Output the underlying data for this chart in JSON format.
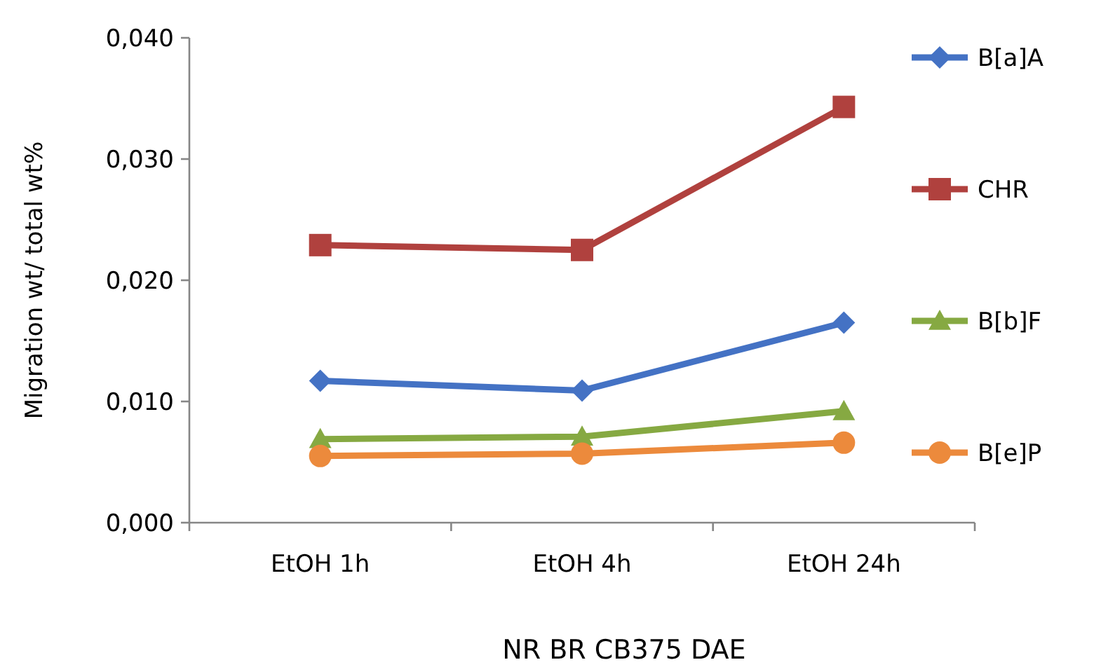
{
  "chart_data": {
    "type": "line",
    "xlabel": "NR BR CB375 DAE",
    "ylabel": "Migration  wt/ total wt%",
    "categories": [
      "EtOH 1h",
      "EtOH 4h",
      "EtOH 24h"
    ],
    "ylim": [
      0,
      0.04
    ],
    "yticks": [
      {
        "value": 0,
        "label": "0,000"
      },
      {
        "value": 0.01,
        "label": "0,010"
      },
      {
        "value": 0.02,
        "label": "0,020"
      },
      {
        "value": 0.03,
        "label": "0,030"
      },
      {
        "value": 0.04,
        "label": "0,040"
      }
    ],
    "grid": false,
    "legend": "right",
    "line_style": "solid",
    "series": [
      {
        "name": "B[a]A",
        "color": "#4472c4",
        "marker": "diamond",
        "values": [
          0.0117,
          0.0109,
          0.0165
        ]
      },
      {
        "name": "CHR",
        "color": "#b0413e",
        "marker": "square",
        "values": [
          0.0229,
          0.0225,
          0.0343
        ]
      },
      {
        "name": "B[b]F",
        "color": "#86a942",
        "marker": "triangle",
        "values": [
          0.0069,
          0.0071,
          0.0092
        ]
      },
      {
        "name": "B[e]P",
        "color": "#ec8a3c",
        "marker": "circle",
        "values": [
          0.0055,
          0.0057,
          0.0066
        ]
      }
    ]
  }
}
